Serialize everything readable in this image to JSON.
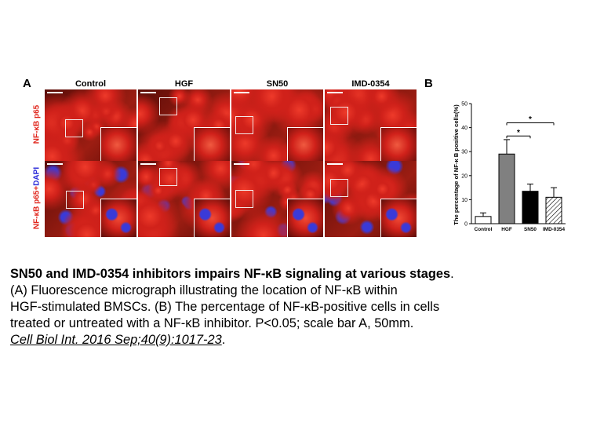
{
  "panel_a": {
    "letter": "A",
    "columns": [
      "Control",
      "HGF",
      "SN50",
      "IMD-0354"
    ],
    "rows": [
      {
        "label_main": "NF-κB p65",
        "label_suffix": ""
      },
      {
        "label_main": "NF-κB p65+",
        "label_suffix": "DAPI"
      }
    ],
    "colors": {
      "red": "#d0211a",
      "blue": "#3a3ad8",
      "dark": "#5a0d08"
    }
  },
  "panel_b": {
    "letter": "B"
  },
  "chart_data": {
    "type": "bar",
    "categories": [
      "Control",
      "HGF",
      "SN50",
      "IMD-0354"
    ],
    "values": [
      3,
      29,
      13.5,
      11
    ],
    "errors": [
      1.5,
      6,
      3,
      4
    ],
    "fills": [
      "#ffffff",
      "#808080",
      "#000000",
      "hatched"
    ],
    "ylabel": "The percentage of NF-κ B positive cells(%)",
    "ylim": [
      0,
      50
    ],
    "yticks": [
      0,
      10,
      20,
      30,
      40,
      50
    ],
    "significance": [
      {
        "from": "HGF",
        "to": "SN50",
        "label": "*"
      },
      {
        "from": "HGF",
        "to": "IMD-0354",
        "label": "*"
      }
    ]
  },
  "caption": {
    "title": "SN50 and IMD-0354 inhibitors impairs NF-κB signaling at various stages",
    "title_end": ".",
    "line1": "(A) Fluorescence micrograph illustrating the location of NF-κB within",
    "line2": "HGF-stimulated BMSCs. (B) The percentage of NF-κB-positive cells in cells",
    "line3": "treated or untreated with a NF-κB inhibitor. P<0.05; scale bar A, 50mm.",
    "citation": "Cell Biol Int. 2016 Sep;40(9):1017-23",
    "citation_end": "."
  }
}
